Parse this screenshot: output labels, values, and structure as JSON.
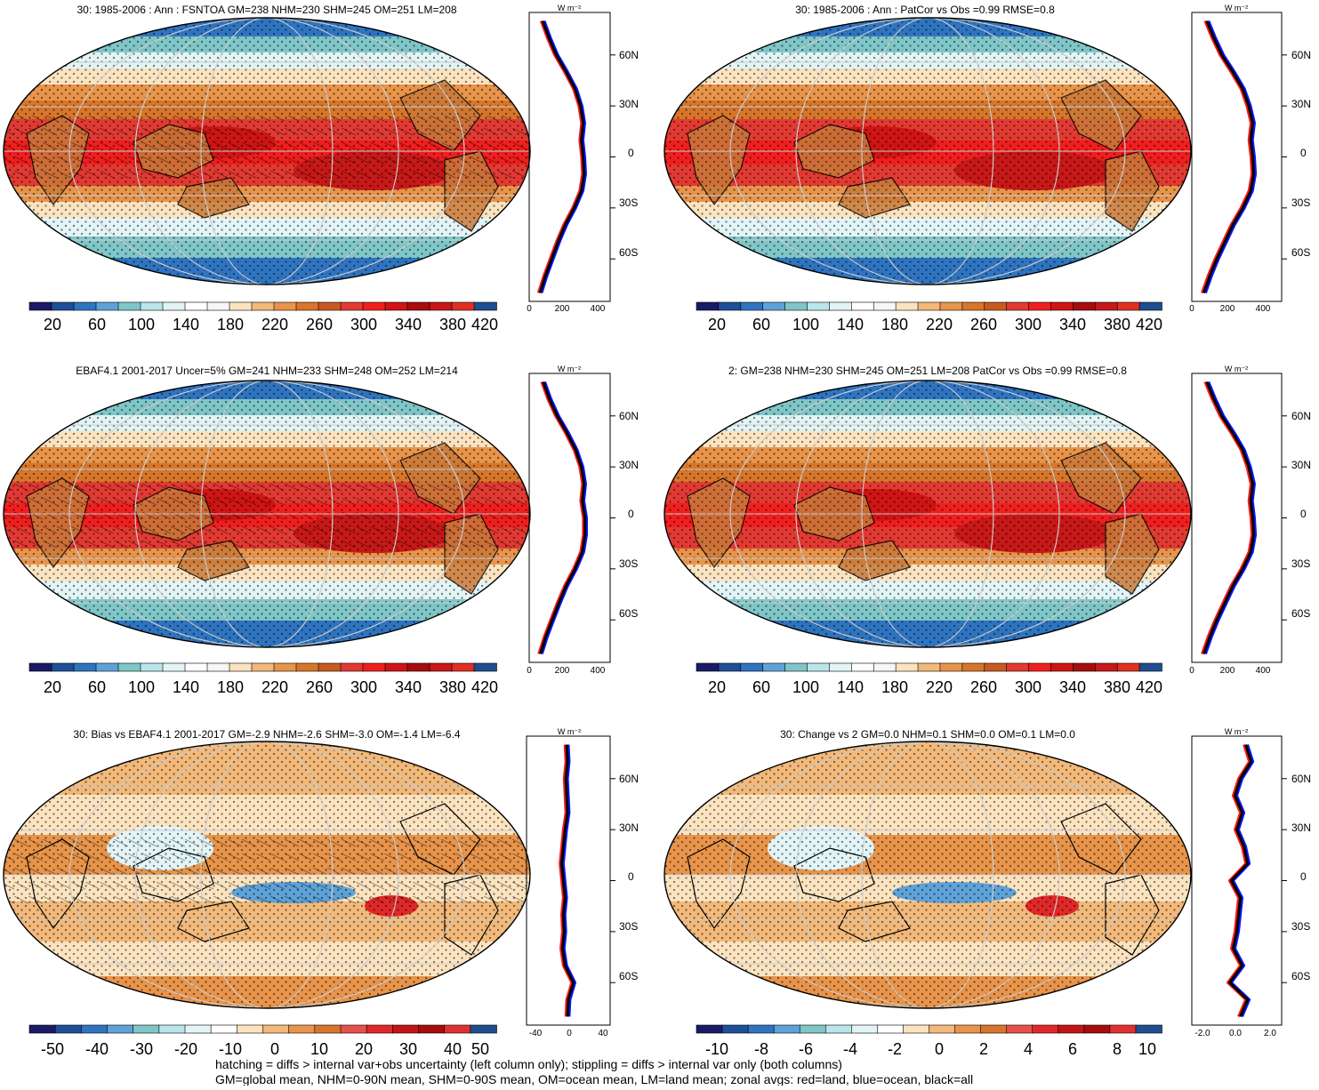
{
  "colors": {
    "abs_scale": [
      "#1a1a66",
      "#1e4f9a",
      "#2f74c0",
      "#5ea2d8",
      "#7fc6c8",
      "#b8e6ea",
      "#e2f4f6",
      "#ffffff",
      "#f6f6f6",
      "#fbe3c0",
      "#f2b97a",
      "#e8944a",
      "#d7762a",
      "#c85a20",
      "#e23a32",
      "#f11e1e",
      "#d01414",
      "#a80c0c",
      "#c81818",
      "#e03020",
      "#1f4e8e"
    ],
    "diff_scale": [
      "#1a1a66",
      "#1e4f9a",
      "#2f74c0",
      "#5ea2d8",
      "#7fc6c8",
      "#b8e6ea",
      "#e2f4f6",
      "#ffffff",
      "#fbe3c0",
      "#f2b97a",
      "#e8944a",
      "#d7762a",
      "#e8504a",
      "#e02828",
      "#c41414",
      "#a80c0c",
      "#e03030",
      "#1f4e8e"
    ],
    "land_line": "#ff1a1a",
    "ocean_line": "#0a14ff",
    "all_line": "#000000"
  },
  "chart_data": [
    {
      "type": "heatmap",
      "title": "30: 1985-2006 : Ann : FSNTOA GM=238 NHM=230 SHM=245 OM=251 LM=208",
      "colorbar_ticks": [
        "20",
        "60",
        "100",
        "140",
        "180",
        "220",
        "260",
        "300",
        "340",
        "380",
        "420"
      ],
      "zonal": {
        "units": "W m⁻²",
        "xticks": [
          "0",
          "200",
          "400"
        ],
        "xrange": [
          0,
          450
        ],
        "yticks": [
          "60N",
          "30N",
          "0",
          "30S",
          "60S"
        ],
        "ylim": [
          -85,
          85
        ],
        "lat": [
          80,
          70,
          60,
          50,
          40,
          30,
          20,
          10,
          0,
          -10,
          -20,
          -30,
          -40,
          -50,
          -60,
          -70,
          -80
        ],
        "all": [
          75,
          110,
          150,
          205,
          255,
          285,
          300,
          290,
          300,
          305,
          290,
          250,
          200,
          160,
          125,
          90,
          60
        ]
      }
    },
    {
      "type": "heatmap",
      "title": "30: 1985-2006 : Ann : PatCor vs Obs =0.99 RMSE=0.8",
      "colorbar_ticks": [
        "20",
        "60",
        "100",
        "140",
        "180",
        "220",
        "260",
        "300",
        "340",
        "380",
        "420"
      ],
      "zonal": {
        "units": "W m⁻²",
        "xticks": [
          "0",
          "200",
          "400"
        ],
        "xrange": [
          0,
          450
        ],
        "yticks": [
          "60N",
          "30N",
          "0",
          "30S",
          "60S"
        ],
        "ylim": [
          -85,
          85
        ],
        "lat": [
          80,
          70,
          60,
          50,
          40,
          30,
          20,
          10,
          0,
          -10,
          -20,
          -30,
          -40,
          -50,
          -60,
          -70,
          -80
        ],
        "all": [
          75,
          110,
          150,
          205,
          255,
          285,
          305,
          295,
          305,
          310,
          295,
          255,
          205,
          165,
          125,
          90,
          60
        ]
      }
    },
    {
      "type": "heatmap",
      "title": "EBAF4.1 2001-2017 Uncer=5% GM=241 NHM=233 SHM=248 OM=252 LM=214",
      "colorbar_ticks": [
        "20",
        "60",
        "100",
        "140",
        "180",
        "220",
        "260",
        "300",
        "340",
        "380",
        "420"
      ],
      "zonal": {
        "units": "W m⁻²",
        "xticks": [
          "0",
          "200",
          "400"
        ],
        "xrange": [
          0,
          450
        ],
        "yticks": [
          "60N",
          "30N",
          "0",
          "30S",
          "60S"
        ],
        "ylim": [
          -85,
          85
        ],
        "lat": [
          80,
          70,
          60,
          50,
          40,
          30,
          20,
          10,
          0,
          -10,
          -20,
          -30,
          -40,
          -50,
          -60,
          -70,
          -80
        ],
        "all": [
          78,
          112,
          155,
          210,
          258,
          290,
          305,
          295,
          310,
          310,
          295,
          255,
          205,
          165,
          128,
          92,
          62
        ]
      }
    },
    {
      "type": "heatmap",
      "title": "2: GM=238 NHM=230 SHM=245 OM=251 LM=208 PatCor vs Obs =0.99 RMSE=0.8",
      "colorbar_ticks": [
        "20",
        "60",
        "100",
        "140",
        "180",
        "220",
        "260",
        "300",
        "340",
        "380",
        "420"
      ],
      "zonal": {
        "units": "W m⁻²",
        "xticks": [
          "0",
          "200",
          "400"
        ],
        "xrange": [
          0,
          450
        ],
        "yticks": [
          "60N",
          "30N",
          "0",
          "30S",
          "60S"
        ],
        "ylim": [
          -85,
          85
        ],
        "lat": [
          80,
          70,
          60,
          50,
          40,
          30,
          20,
          10,
          0,
          -10,
          -20,
          -30,
          -40,
          -50,
          -60,
          -70,
          -80
        ],
        "all": [
          75,
          110,
          150,
          205,
          255,
          285,
          305,
          295,
          305,
          310,
          295,
          255,
          205,
          165,
          125,
          90,
          60
        ]
      }
    },
    {
      "type": "heatmap",
      "title": "30: Bias vs EBAF4.1 2001-2017 GM=-2.9 NHM=-2.6 SHM=-3.0 OM=-1.4 LM=-6.4",
      "colorbar_ticks": [
        "-50",
        "-40",
        "-30",
        "-20",
        "-10",
        "0",
        "10",
        "20",
        "30",
        "40",
        "50"
      ],
      "zonal": {
        "units": "W m⁻²",
        "xticks": [
          "-40",
          "0",
          "40"
        ],
        "xrange": [
          -50,
          50
        ],
        "yticks": [
          "60N",
          "30N",
          "0",
          "30S",
          "60S"
        ],
        "ylim": [
          -85,
          85
        ],
        "lat": [
          80,
          70,
          60,
          50,
          40,
          30,
          20,
          10,
          0,
          -10,
          -20,
          -30,
          -40,
          -50,
          -60,
          -70,
          -80
        ],
        "all": [
          -2,
          -1,
          -3,
          -2,
          -1,
          -4,
          -6,
          -8,
          -6,
          -4,
          -6,
          -5,
          -7,
          -4,
          6,
          0,
          -1
        ]
      }
    },
    {
      "type": "heatmap",
      "title": "30: Change vs 2 GM=0.0 NHM=0.1 SHM=0.0 OM=0.1 LM=0.0",
      "colorbar_ticks": [
        "-10",
        "-8",
        "-6",
        "-4",
        "-2",
        "0",
        "2",
        "4",
        "6",
        "8",
        "10"
      ],
      "zonal": {
        "units": "W m⁻²",
        "xticks": [
          "-2.0",
          "0.0",
          "2.0"
        ],
        "xrange": [
          -2.5,
          2.5
        ],
        "yticks": [
          "60N",
          "30N",
          "0",
          "30S",
          "60S"
        ],
        "ylim": [
          -85,
          85
        ],
        "lat": [
          80,
          70,
          60,
          50,
          40,
          30,
          20,
          10,
          0,
          -10,
          -20,
          -30,
          -40,
          -50,
          -60,
          -70,
          -80
        ],
        "all": [
          0.5,
          0.8,
          0.2,
          -0.1,
          0.3,
          0.0,
          0.4,
          0.6,
          -0.3,
          0.2,
          0.1,
          0.0,
          -0.2,
          0.3,
          -0.4,
          0.6,
          0.2
        ]
      }
    }
  ],
  "footer": {
    "line1": "hatching = diffs > internal var+obs uncertainty (left column only); stippling = diffs > internal var only (both columns)",
    "line2": "GM=global mean, NHM=0-90N mean, SHM=0-90S mean, OM=ocean mean, LM=land mean; zonal avgs: red=land, blue=ocean, black=all"
  }
}
